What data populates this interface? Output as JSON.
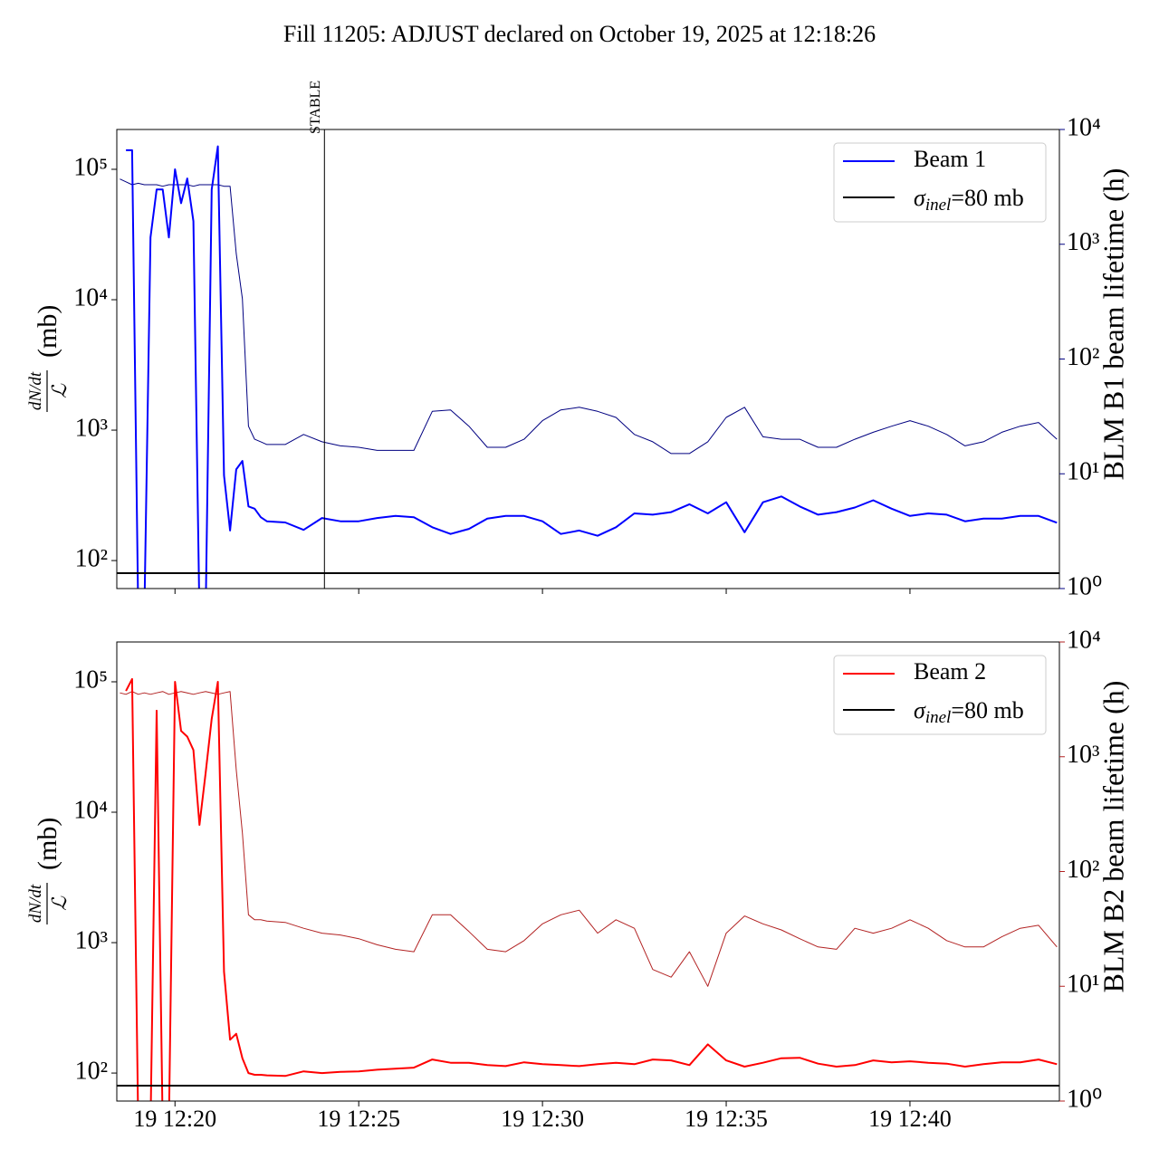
{
  "chart_data": [
    {
      "type": "line",
      "title": "Fill 11205: ADJUST declared on October 19, 2025 at 12:18:26",
      "log_y": true,
      "legend": "upper right",
      "ylabel": {
        "numerator": "dN/dt",
        "denominator": "ℒ",
        "unit": "(mb)"
      },
      "y2label": "BLM B1 beam lifetime (h)",
      "y2color": "#000080",
      "xlim": [
        "12:18:25",
        "12:44:04"
      ],
      "xticks": [
        "12:20:00",
        "12:25:00",
        "12:30:00",
        "12:35:00",
        "12:40:00"
      ],
      "ylim": [
        61,
        202000
      ],
      "yticks": [
        {
          "value": 100,
          "label": "10²"
        },
        {
          "value": 1000,
          "label": "10³"
        },
        {
          "value": 10000,
          "label": "10⁴"
        },
        {
          "value": 100000,
          "label": "10⁵"
        }
      ],
      "y2lim": [
        1,
        10000
      ],
      "y2ticks": [
        {
          "value": 1,
          "label": "10⁰"
        },
        {
          "value": 10,
          "label": "10¹"
        },
        {
          "value": 100,
          "label": "10²"
        },
        {
          "value": 1000,
          "label": "10³"
        },
        {
          "value": 10000,
          "label": "10⁴"
        }
      ],
      "x": [
        "12:18:30",
        "12:18:40",
        "12:18:50",
        "12:19:00",
        "12:19:10",
        "12:19:20",
        "12:19:30",
        "12:19:40",
        "12:19:50",
        "12:20:00",
        "12:20:10",
        "12:20:20",
        "12:20:30",
        "12:20:40",
        "12:20:50",
        "12:21:00",
        "12:21:10",
        "12:21:20",
        "12:21:30",
        "12:21:40",
        "12:21:50",
        "12:22:00",
        "12:22:10",
        "12:22:20",
        "12:22:30",
        "12:23:00",
        "12:23:30",
        "12:24:00",
        "12:24:30",
        "12:25:00",
        "12:25:30",
        "12:26:00",
        "12:26:30",
        "12:27:00",
        "12:27:30",
        "12:28:00",
        "12:28:30",
        "12:29:00",
        "12:29:30",
        "12:30:00",
        "12:30:30",
        "12:31:00",
        "12:31:30",
        "12:32:00",
        "12:32:30",
        "12:33:00",
        "12:33:30",
        "12:34:00",
        "12:34:30",
        "12:35:00",
        "12:35:30",
        "12:36:00",
        "12:36:30",
        "12:37:00",
        "12:37:30",
        "12:38:00",
        "12:38:30",
        "12:39:00",
        "12:39:30",
        "12:40:00",
        "12:40:30",
        "12:41:00",
        "12:41:30",
        "12:42:00",
        "12:42:30",
        "12:43:00",
        "12:43:30",
        "12:44:00"
      ],
      "series": [
        {
          "color": "#000080",
          "axis": "y2",
          "linewidth": 1,
          "values": [
            3700,
            3500,
            3300,
            3400,
            3300,
            3300,
            3300,
            3200,
            3300,
            3300,
            3300,
            3300,
            3200,
            3300,
            3300,
            3300,
            3300,
            3200,
            3200,
            830,
            335,
            26,
            20,
            19,
            18,
            18,
            22,
            19,
            17.5,
            17,
            16,
            16,
            16,
            35,
            36,
            26,
            17,
            17,
            20,
            29,
            36,
            38,
            35,
            31,
            22,
            19,
            15,
            15,
            19,
            31,
            38,
            21,
            20,
            20,
            17,
            17,
            20,
            23,
            26,
            29,
            26,
            22,
            17.5,
            19,
            23,
            26,
            28,
            20
          ]
        },
        {
          "name": "Beam 1",
          "color": "#0000ff",
          "linewidth": 2,
          "values": [
            null,
            140000,
            140000,
            0,
            0,
            30000,
            70000,
            70000,
            30000,
            100000,
            55000,
            85000,
            40000,
            0,
            0,
            70000,
            150000,
            450,
            170,
            500,
            580,
            260,
            250,
            215,
            200,
            196,
            172,
            212,
            200,
            200,
            212,
            220,
            215,
            180,
            160,
            175,
            210,
            220,
            220,
            200,
            160,
            170,
            155,
            180,
            230,
            225,
            235,
            270,
            230,
            280,
            165,
            280,
            310,
            260,
            225,
            235,
            255,
            290,
            250,
            220,
            230,
            225,
            200,
            210,
            210,
            220,
            220,
            195
          ]
        }
      ],
      "hline": {
        "label_parts": [
          "σ",
          "inel",
          "=80 mb"
        ],
        "value": 80,
        "color": "#000000"
      },
      "annotations": [
        {
          "text": "STABLE",
          "x": "12:24:04"
        }
      ]
    },
    {
      "type": "line",
      "log_y": true,
      "legend": "upper right",
      "ylabel": {
        "numerator": "dN/dt",
        "denominator": "ℒ",
        "unit": "(mb)"
      },
      "y2label": "BLM B2 beam lifetime (h)",
      "y2color": "#b22222",
      "xlim": [
        "12:18:25",
        "12:44:04"
      ],
      "xticks": [
        {
          "value": "12:20:00",
          "label": "19 12:20"
        },
        {
          "value": "12:25:00",
          "label": "19 12:25"
        },
        {
          "value": "12:30:00",
          "label": "19 12:30"
        },
        {
          "value": "12:35:00",
          "label": "19 12:35"
        },
        {
          "value": "12:40:00",
          "label": "19 12:40"
        }
      ],
      "ylim": [
        61,
        202000
      ],
      "yticks": [
        {
          "value": 100,
          "label": "10²"
        },
        {
          "value": 1000,
          "label": "10³"
        },
        {
          "value": 10000,
          "label": "10⁴"
        },
        {
          "value": 100000,
          "label": "10⁵"
        }
      ],
      "y2lim": [
        1,
        10000
      ],
      "y2ticks": [
        {
          "value": 1,
          "label": "10⁰"
        },
        {
          "value": 10,
          "label": "10¹"
        },
        {
          "value": 100,
          "label": "10²"
        },
        {
          "value": 1000,
          "label": "10³"
        },
        {
          "value": 10000,
          "label": "10⁴"
        }
      ],
      "x": [
        "12:18:30",
        "12:18:40",
        "12:18:50",
        "12:19:00",
        "12:19:10",
        "12:19:20",
        "12:19:30",
        "12:19:40",
        "12:19:50",
        "12:20:00",
        "12:20:10",
        "12:20:20",
        "12:20:30",
        "12:20:40",
        "12:20:50",
        "12:21:00",
        "12:21:10",
        "12:21:20",
        "12:21:30",
        "12:21:40",
        "12:21:50",
        "12:22:00",
        "12:22:10",
        "12:22:20",
        "12:22:30",
        "12:23:00",
        "12:23:30",
        "12:24:00",
        "12:24:30",
        "12:25:00",
        "12:25:30",
        "12:26:00",
        "12:26:30",
        "12:27:00",
        "12:27:30",
        "12:28:00",
        "12:28:30",
        "12:29:00",
        "12:29:30",
        "12:30:00",
        "12:30:30",
        "12:31:00",
        "12:31:30",
        "12:32:00",
        "12:32:30",
        "12:33:00",
        "12:33:30",
        "12:34:00",
        "12:34:30",
        "12:35:00",
        "12:35:30",
        "12:36:00",
        "12:36:30",
        "12:37:00",
        "12:37:30",
        "12:38:00",
        "12:38:30",
        "12:39:00",
        "12:39:30",
        "12:40:00",
        "12:40:30",
        "12:41:00",
        "12:41:30",
        "12:42:00",
        "12:42:30",
        "12:43:00",
        "12:43:30",
        "12:44:00"
      ],
      "series": [
        {
          "color": "#b22222",
          "axis": "y2",
          "linewidth": 1,
          "values": [
            3600,
            3500,
            3700,
            3500,
            3600,
            3500,
            3600,
            3700,
            3500,
            3600,
            3700,
            3600,
            3500,
            3600,
            3700,
            3600,
            3500,
            3600,
            3700,
            770,
            217,
            42,
            38,
            38,
            37,
            36,
            32,
            29,
            28,
            26,
            23,
            21,
            20,
            42,
            42,
            30,
            21,
            20,
            25,
            35,
            42,
            46,
            29,
            38,
            32,
            14,
            12,
            20,
            10,
            29,
            41,
            35,
            31,
            26,
            22,
            21,
            32,
            29,
            32,
            38,
            32,
            25,
            22,
            22,
            27,
            32,
            34,
            22
          ]
        },
        {
          "name": "Beam 2",
          "color": "#ff0000",
          "linewidth": 2,
          "values": [
            null,
            85000,
            105000,
            0,
            0,
            0,
            60000,
            0,
            0,
            100000,
            42000,
            38000,
            30000,
            8000,
            20000,
            52000,
            100000,
            600,
            180,
            200,
            130,
            100,
            97,
            97,
            96,
            95,
            103,
            100,
            102,
            103,
            106,
            108,
            110,
            127,
            120,
            120,
            115,
            113,
            121,
            117,
            115,
            113,
            117,
            120,
            117,
            127,
            125,
            115,
            166,
            125,
            112,
            120,
            130,
            131,
            118,
            112,
            115,
            125,
            121,
            123,
            120,
            118,
            112,
            117,
            121,
            121,
            127,
            117
          ]
        }
      ],
      "hline": {
        "label_parts": [
          "σ",
          "inel",
          "=80 mb"
        ],
        "value": 80,
        "color": "#000000"
      }
    }
  ]
}
